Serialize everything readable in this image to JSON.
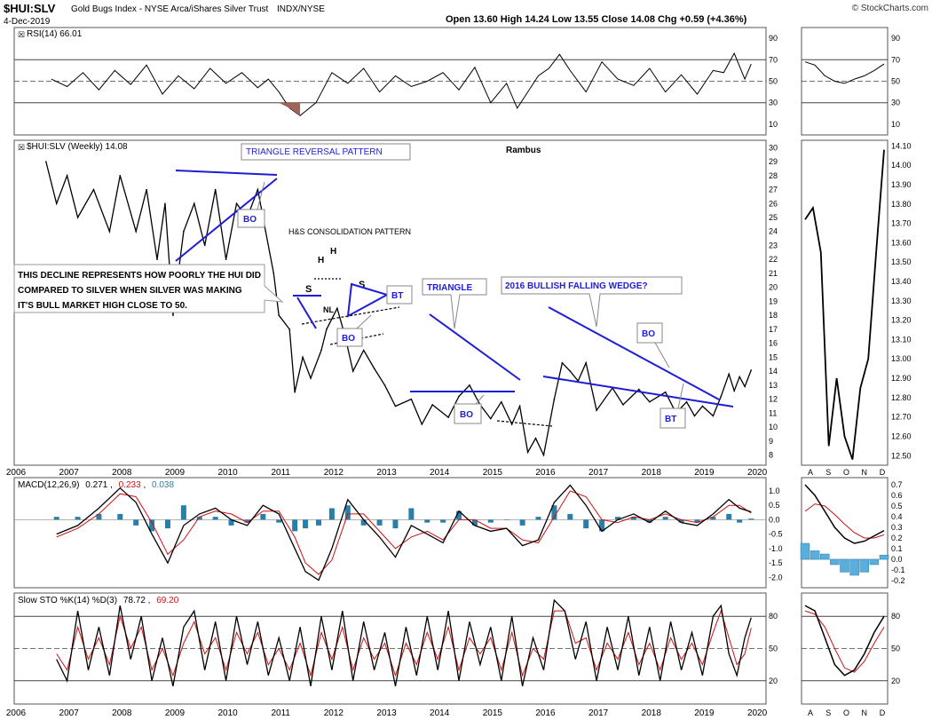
{
  "header": {
    "symbol": "$HUI:SLV",
    "description": "Gold Bugs Index - NYSE Arca/iShares Silver Trust",
    "exchange": "INDX/NYSE",
    "date": "4-Dec-2019",
    "ohlc": "Open 13.60  High 14.24  Low 13.55  Close 14.08  Chg +0.59 (+4.36%)",
    "watermark": "© StockCharts.com"
  },
  "chart_data": [
    {
      "type": "line",
      "name": "rsi",
      "title": "RSI(14) 66.01",
      "ylim": [
        0,
        100
      ],
      "ticks": [
        10,
        30,
        50,
        70,
        90
      ],
      "zoom_ticks": [
        10,
        30,
        50,
        70,
        90
      ],
      "x": [
        2006.7,
        2007.0,
        2007.3,
        2007.6,
        2007.9,
        2008.2,
        2008.5,
        2008.8,
        2009.1,
        2009.4,
        2009.7,
        2010.0,
        2010.3,
        2010.6,
        2010.8,
        2011.0,
        2011.2,
        2011.4,
        2011.7,
        2012.0,
        2012.3,
        2012.6,
        2012.9,
        2013.2,
        2013.5,
        2013.8,
        2014.1,
        2014.4,
        2014.7,
        2015.0,
        2015.3,
        2015.5,
        2015.7,
        2015.9,
        2016.1,
        2016.3,
        2016.5,
        2016.8,
        2017.1,
        2017.4,
        2017.7,
        2018.0,
        2018.3,
        2018.6,
        2018.9,
        2019.2,
        2019.4,
        2019.6,
        2019.8,
        2019.92
      ],
      "values": [
        52,
        45,
        58,
        42,
        60,
        47,
        65,
        38,
        55,
        43,
        62,
        48,
        58,
        44,
        52,
        40,
        25,
        18,
        30,
        58,
        48,
        62,
        40,
        55,
        45,
        50,
        58,
        42,
        63,
        30,
        48,
        25,
        40,
        55,
        62,
        75,
        60,
        40,
        68,
        52,
        46,
        62,
        40,
        56,
        38,
        60,
        58,
        76,
        52,
        66
      ],
      "zoom_x": [
        "A",
        "S",
        "O",
        "N",
        "D"
      ],
      "zoom_values": [
        68,
        65,
        55,
        50,
        48,
        52,
        55,
        60,
        66
      ]
    },
    {
      "type": "line",
      "name": "price",
      "title": "$HUI:SLV (Weekly) 14.08",
      "annotation_title": "Rambus",
      "ylim": [
        7.4,
        30.4
      ],
      "ticks": [
        8,
        9,
        10,
        11,
        12,
        13,
        14,
        15,
        16,
        17,
        18,
        19,
        20,
        21,
        22,
        23,
        24,
        25,
        26,
        27,
        28,
        29,
        30
      ],
      "x": [
        2006.6,
        2006.8,
        2007.0,
        2007.2,
        2007.5,
        2007.8,
        2008.0,
        2008.3,
        2008.5,
        2008.7,
        2008.85,
        2009.0,
        2009.2,
        2009.4,
        2009.6,
        2009.8,
        2010.0,
        2010.2,
        2010.4,
        2010.6,
        2010.75,
        2010.9,
        2011.0,
        2011.2,
        2011.3,
        2011.45,
        2011.6,
        2011.8,
        2011.9,
        2012.1,
        2012.25,
        2012.4,
        2012.6,
        2012.8,
        2013.0,
        2013.2,
        2013.5,
        2013.7,
        2013.9,
        2014.2,
        2014.4,
        2014.6,
        2014.8,
        2015.0,
        2015.2,
        2015.4,
        2015.55,
        2015.7,
        2015.85,
        2016.0,
        2016.2,
        2016.35,
        2016.5,
        2016.65,
        2016.8,
        2017.0,
        2017.3,
        2017.5,
        2017.8,
        2018.0,
        2018.3,
        2018.5,
        2018.7,
        2018.85,
        2019.0,
        2019.2,
        2019.35,
        2019.5,
        2019.6,
        2019.7,
        2019.8,
        2019.92
      ],
      "values": [
        29,
        26,
        28,
        25,
        27,
        24,
        28,
        24,
        27,
        22,
        26,
        18,
        24,
        26,
        23,
        27,
        22,
        26,
        25,
        27,
        24,
        21,
        18,
        17,
        12.5,
        15,
        13.5,
        15.5,
        17,
        18.5,
        16.5,
        14,
        15.5,
        14.2,
        13,
        11.5,
        12,
        10.2,
        11.6,
        10.7,
        12.2,
        13,
        11.6,
        10.6,
        11.8,
        10.2,
        11.5,
        8.2,
        9.2,
        8.0,
        12,
        14.6,
        14.0,
        13.3,
        14.6,
        11.2,
        12.8,
        11.6,
        12.7,
        11.8,
        12.5,
        11.0,
        11.8,
        10.8,
        11.5,
        10.8,
        12.2,
        13.8,
        12.6,
        13.6,
        12.9,
        14.08
      ],
      "zoom_x": [
        "A",
        "S",
        "O",
        "N",
        "D"
      ],
      "zoom_ticks": [
        12.5,
        12.6,
        12.7,
        12.8,
        12.9,
        13.0,
        13.1,
        13.2,
        13.3,
        13.4,
        13.5,
        13.6,
        13.7,
        13.8,
        13.9,
        14.0,
        14.1
      ],
      "zoom_ylim": [
        12.46,
        14.12
      ],
      "zoom_values": [
        13.72,
        13.78,
        13.55,
        12.55,
        12.9,
        12.6,
        12.48,
        12.85,
        13.0,
        13.55,
        14.08
      ]
    },
    {
      "type": "line",
      "name": "macd",
      "title_prefix": "MACD(12,26,9)",
      "macd": "0.271",
      "signal": "0.233",
      "histogram": "0.038",
      "ylim": [
        -2.3,
        1.4
      ],
      "ticks": [
        -2.0,
        -1.5,
        -1.0,
        -0.5,
        0.0,
        0.5,
        1.0
      ],
      "tick_labels": [
        "-2.0",
        "-1.5",
        "-1.0",
        "-0.5",
        "0.0",
        "0.5",
        "1.0"
      ],
      "x": [
        2006.8,
        2007.2,
        2007.6,
        2008.0,
        2008.3,
        2008.6,
        2008.9,
        2009.2,
        2009.5,
        2009.8,
        2010.1,
        2010.4,
        2010.7,
        2011.0,
        2011.3,
        2011.5,
        2011.75,
        2012.0,
        2012.3,
        2012.6,
        2012.9,
        2013.2,
        2013.5,
        2013.8,
        2014.1,
        2014.4,
        2014.7,
        2015.0,
        2015.3,
        2015.6,
        2015.9,
        2016.2,
        2016.5,
        2016.8,
        2017.1,
        2017.4,
        2017.7,
        2018.0,
        2018.3,
        2018.6,
        2018.9,
        2019.2,
        2019.5,
        2019.7,
        2019.92
      ],
      "values": [
        -0.5,
        -0.2,
        0.4,
        1.1,
        0.6,
        -0.5,
        -1.5,
        -0.2,
        0.2,
        0.4,
        0.0,
        -0.2,
        0.5,
        0.2,
        -1.0,
        -1.8,
        -2.1,
        -1.0,
        0.7,
        0.0,
        -0.6,
        -1.3,
        -0.2,
        -0.5,
        -0.8,
        0.3,
        -0.2,
        -0.4,
        -0.3,
        -0.9,
        -0.7,
        0.6,
        1.2,
        0.5,
        -0.4,
        0.0,
        0.2,
        -0.1,
        0.3,
        -0.1,
        -0.2,
        0.2,
        0.7,
        0.4,
        0.27
      ],
      "signal_values": [
        -0.6,
        -0.3,
        0.2,
        0.9,
        0.8,
        -0.1,
        -1.2,
        -0.7,
        0.1,
        0.3,
        0.2,
        -0.1,
        0.3,
        0.3,
        -0.6,
        -1.5,
        -1.9,
        -1.4,
        0.2,
        0.2,
        -0.4,
        -1.0,
        -0.6,
        -0.4,
        -0.7,
        0.0,
        0.0,
        -0.3,
        -0.3,
        -0.7,
        -0.8,
        0.1,
        1.0,
        0.8,
        0.0,
        -0.1,
        0.1,
        0.0,
        0.2,
        0.0,
        -0.1,
        0.1,
        0.5,
        0.5,
        0.23
      ],
      "zoom_x": [
        "A",
        "S",
        "O",
        "N",
        "D"
      ],
      "zoom_ylim": [
        -0.25,
        0.75
      ],
      "zoom_ticks": [
        -0.2,
        -0.1,
        0.0,
        0.1,
        0.2,
        0.3,
        0.4,
        0.5,
        0.6,
        0.7
      ],
      "zoom_tick_labels": [
        "-0.2",
        "-0.1",
        "0.0",
        "0.1",
        "0.2",
        "0.3",
        "0.4",
        "0.5",
        "0.6",
        "0.7"
      ],
      "zoom_values": [
        0.7,
        0.6,
        0.45,
        0.3,
        0.2,
        0.15,
        0.17,
        0.22,
        0.27
      ],
      "zoom_signal": [
        0.45,
        0.52,
        0.5,
        0.42,
        0.33,
        0.25,
        0.2,
        0.2,
        0.23
      ],
      "zoom_hist": [
        0.15,
        0.08,
        0.05,
        -0.05,
        -0.12,
        -0.15,
        -0.12,
        -0.05,
        0.04
      ]
    },
    {
      "type": "line",
      "name": "stoch",
      "title_prefix": "Slow STO %K(14) %D(3)",
      "k": "78.72",
      "d": "69.20",
      "ylim": [
        0,
        100
      ],
      "ticks": [
        20,
        50,
        80
      ],
      "x": [
        2006.8,
        2007.0,
        2007.2,
        2007.4,
        2007.6,
        2007.8,
        2008.0,
        2008.2,
        2008.4,
        2008.6,
        2008.8,
        2009.0,
        2009.2,
        2009.4,
        2009.6,
        2009.8,
        2010.0,
        2010.2,
        2010.4,
        2010.6,
        2010.8,
        2011.0,
        2011.2,
        2011.4,
        2011.6,
        2011.8,
        2012.0,
        2012.2,
        2012.4,
        2012.6,
        2012.8,
        2013.0,
        2013.2,
        2013.4,
        2013.6,
        2013.8,
        2014.0,
        2014.2,
        2014.4,
        2014.6,
        2014.8,
        2015.0,
        2015.2,
        2015.4,
        2015.6,
        2015.8,
        2016.0,
        2016.2,
        2016.4,
        2016.6,
        2016.8,
        2017.0,
        2017.2,
        2017.4,
        2017.6,
        2017.8,
        2018.0,
        2018.2,
        2018.4,
        2018.6,
        2018.8,
        2019.0,
        2019.2,
        2019.35,
        2019.5,
        2019.65,
        2019.8,
        2019.92
      ],
      "values": [
        40,
        20,
        85,
        30,
        70,
        25,
        90,
        40,
        80,
        20,
        60,
        15,
        70,
        85,
        30,
        75,
        20,
        80,
        35,
        75,
        25,
        60,
        20,
        70,
        15,
        80,
        30,
        85,
        20,
        75,
        30,
        65,
        15,
        70,
        25,
        80,
        30,
        85,
        20,
        75,
        35,
        70,
        20,
        80,
        15,
        60,
        30,
        95,
        85,
        40,
        75,
        20,
        70,
        30,
        80,
        25,
        70,
        20,
        75,
        30,
        65,
        25,
        80,
        90,
        45,
        25,
        60,
        78.72
      ],
      "d_values": [
        45,
        30,
        70,
        40,
        60,
        35,
        80,
        50,
        70,
        30,
        50,
        25,
        55,
        75,
        45,
        60,
        30,
        65,
        45,
        65,
        35,
        50,
        30,
        55,
        25,
        65,
        40,
        70,
        30,
        60,
        40,
        55,
        25,
        55,
        35,
        65,
        40,
        70,
        30,
        60,
        45,
        60,
        30,
        65,
        25,
        50,
        40,
        85,
        85,
        55,
        60,
        30,
        55,
        40,
        65,
        35,
        55,
        30,
        60,
        40,
        55,
        35,
        65,
        85,
        60,
        35,
        45,
        69.2
      ],
      "zoom_x": [
        "A",
        "S",
        "O",
        "N",
        "D"
      ],
      "zoom_values": [
        90,
        85,
        60,
        35,
        25,
        30,
        45,
        65,
        80
      ],
      "zoom_d": [
        85,
        82,
        70,
        50,
        32,
        28,
        38,
        55,
        70
      ]
    }
  ],
  "x_axis_years": [
    "2006",
    "2007",
    "2008",
    "2009",
    "2010",
    "2011",
    "2012",
    "2013",
    "2014",
    "2015",
    "2016",
    "2017",
    "2018",
    "2019",
    "2020"
  ],
  "annotations": {
    "triangle_reversal": "TRIANGLE REVERSAL PATTERN",
    "hs_consolidation": "H&S CONSOLIDATION PATTERN",
    "decline_note_1": "THIS DECLINE REPRESENTS HOW POORLY THE HUI DID",
    "decline_note_2": "COMPARED TO SILVER WHEN SILVER WAS MAKING",
    "decline_note_3": "IT'S BULL MARKET HIGH CLOSE TO 50.",
    "triangle": "TRIANGLE",
    "falling_wedge": "2016 BULLISH FALLING WEDGE?",
    "bo": "BO",
    "bt": "BT",
    "s": "S",
    "h": "H",
    "nl": "NL"
  },
  "colors": {
    "blue": "#1d1dd8",
    "macd_hist": "#2a7fa8",
    "signal": "#d01010",
    "rsi_fill": "#a0645a",
    "grid": "#999999"
  }
}
